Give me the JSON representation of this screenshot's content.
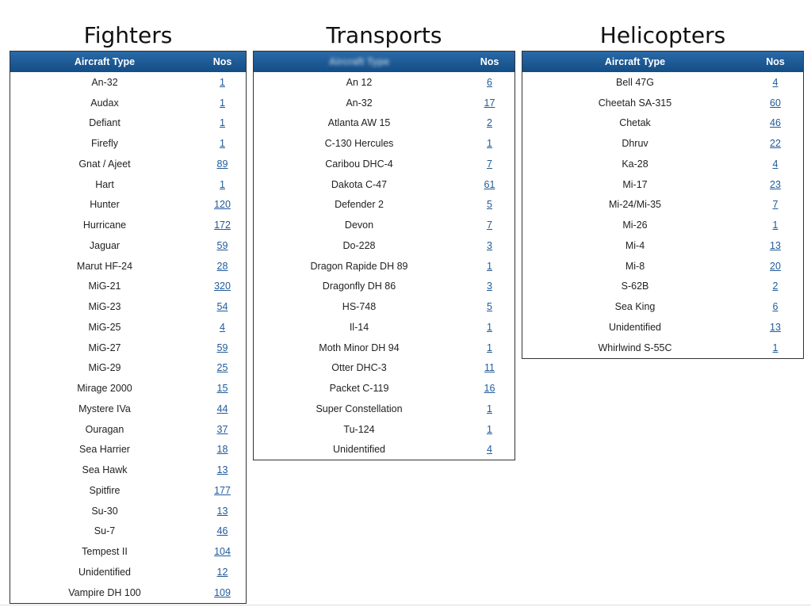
{
  "tables": [
    {
      "title": "Fighters",
      "columns": [
        "Aircraft Type",
        "Nos"
      ],
      "rows": [
        [
          "An-32",
          1
        ],
        [
          "Audax",
          1
        ],
        [
          "Defiant",
          1
        ],
        [
          "Firefly",
          1
        ],
        [
          "Gnat / Ajeet",
          89
        ],
        [
          "Hart",
          1
        ],
        [
          "Hunter",
          120
        ],
        [
          "Hurricane",
          172
        ],
        [
          "Jaguar",
          59
        ],
        [
          "Marut HF-24",
          28
        ],
        [
          "MiG-21",
          320
        ],
        [
          "MiG-23",
          54
        ],
        [
          "MiG-25",
          4
        ],
        [
          "MiG-27",
          59
        ],
        [
          "MiG-29",
          25
        ],
        [
          "Mirage 2000",
          15
        ],
        [
          "Mystere IVa",
          44
        ],
        [
          "Ouragan",
          37
        ],
        [
          "Sea Harrier",
          18
        ],
        [
          "Sea Hawk",
          13
        ],
        [
          "Spitfire",
          177
        ],
        [
          "Su-30",
          13
        ],
        [
          "Su-7",
          46
        ],
        [
          "Tempest II",
          104
        ],
        [
          "Unidentified",
          12
        ],
        [
          "Vampire DH 100",
          109
        ]
      ]
    },
    {
      "title": "Transports",
      "columns": [
        "Aircraft Type",
        "Nos"
      ],
      "rows": [
        [
          "An 12",
          6
        ],
        [
          "An-32",
          17
        ],
        [
          "Atlanta AW 15",
          2
        ],
        [
          "C-130 Hercules",
          1
        ],
        [
          "Caribou DHC-4",
          7
        ],
        [
          "Dakota C-47",
          61
        ],
        [
          "Defender 2",
          5
        ],
        [
          "Devon",
          7
        ],
        [
          "Do-228",
          3
        ],
        [
          "Dragon Rapide DH 89",
          1
        ],
        [
          "Dragonfly DH 86",
          3
        ],
        [
          "HS-748",
          5
        ],
        [
          "Il-14",
          1
        ],
        [
          "Moth Minor DH 94",
          1
        ],
        [
          "Otter DHC-3",
          11
        ],
        [
          "Packet C-119",
          16
        ],
        [
          "Super Constellation",
          1
        ],
        [
          "Tu-124",
          1
        ],
        [
          "Unidentified",
          4
        ]
      ]
    },
    {
      "title": "Helicopters",
      "columns": [
        "Aircraft Type",
        "Nos"
      ],
      "rows": [
        [
          "Bell 47G",
          4
        ],
        [
          "Cheetah SA-315",
          60
        ],
        [
          "Chetak",
          46
        ],
        [
          "Dhruv",
          22
        ],
        [
          "Ka-28",
          4
        ],
        [
          "Mi-17",
          23
        ],
        [
          "Mi-24/Mi-35",
          7
        ],
        [
          "Mi-26",
          1
        ],
        [
          "Mi-4",
          13
        ],
        [
          "Mi-8",
          20
        ],
        [
          "S-62B",
          2
        ],
        [
          "Sea King",
          6
        ],
        [
          "Unidentified",
          13
        ],
        [
          "Whirlwind S-55C",
          1
        ]
      ]
    }
  ]
}
